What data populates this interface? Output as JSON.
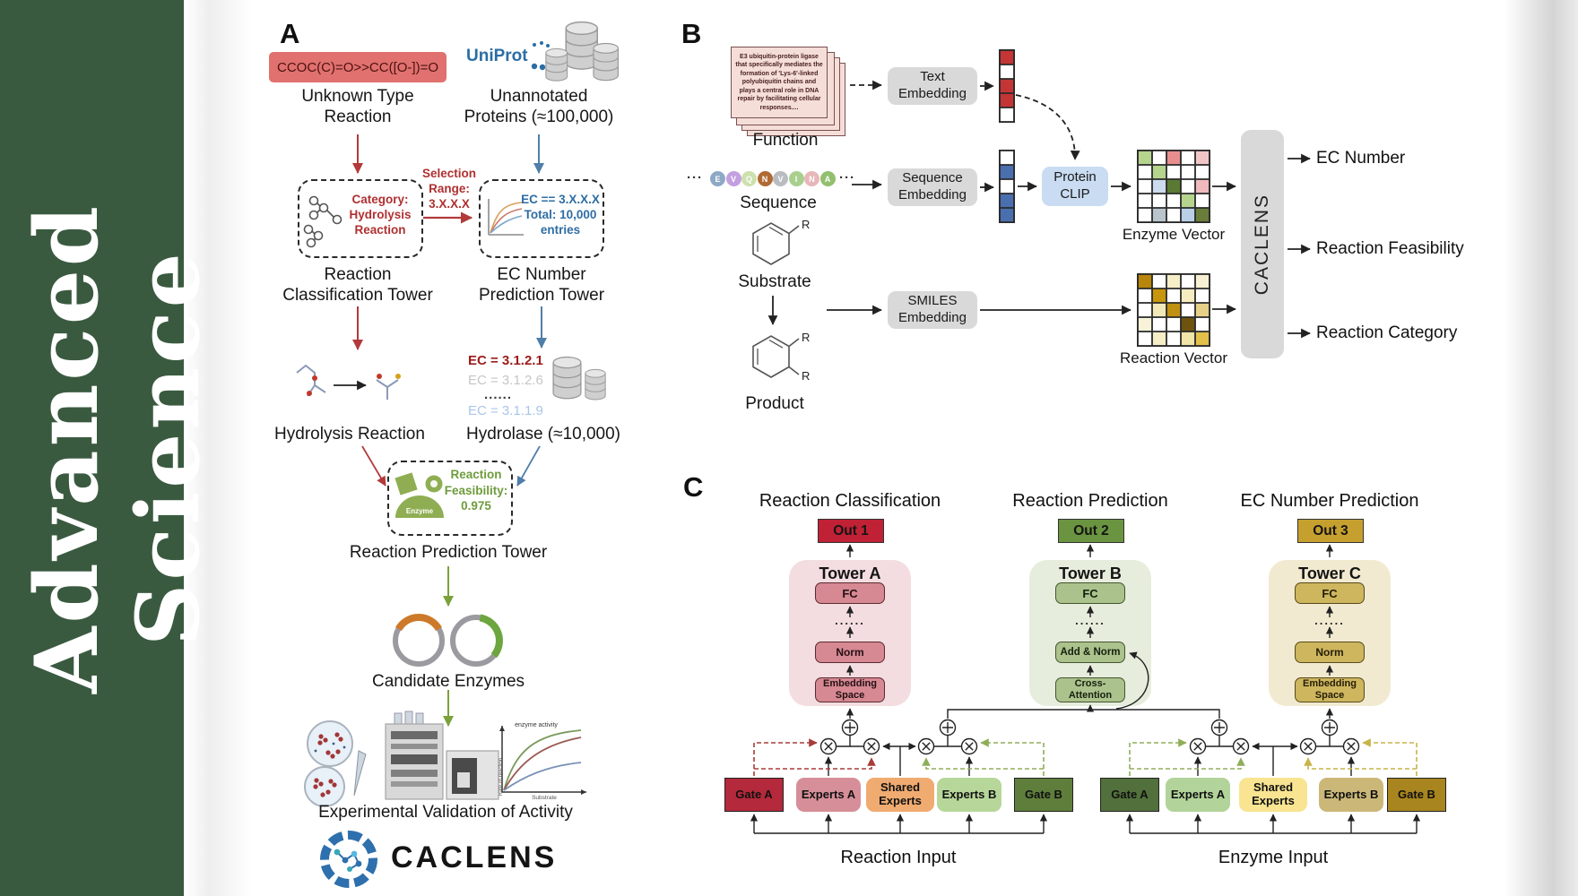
{
  "journal": {
    "title": "Advanced Science"
  },
  "palette": {
    "sidebar_green": "#3a5a40",
    "red_accent": "#b23a3a",
    "blue_accent": "#4f7fa8",
    "green_accent": "#7aa23c",
    "uniprot_blue": "#2b6da4",
    "smiles_chip": "#e0716e",
    "tower_a_pink": "#f3dde0",
    "tower_b_green": "#e7eddd",
    "tower_c_tan": "#f2ead0",
    "out1_red": "#c02135",
    "out2_green": "#6a9440",
    "out3_gold": "#c6a02e"
  },
  "panelA": {
    "label": "A",
    "smiles_reaction": "CCOC(C)=O>>CC([O-])=O",
    "unknown_type_label": "Unknown Type\nReaction",
    "uniprot_label": "UniProt",
    "unannotated_label": "Unannotated\nProteins (≈100,000)",
    "selection_label": "Selection\nRange:\n3.X.X.X",
    "category_label": "Category:\nHydrolysis\nReaction",
    "ec_filter_label": "EC == 3.X.X.X\nTotal: 10,000\nentries",
    "classification_tower_label": "Reaction\nClassification Tower",
    "ec_tower_label": "EC Number\nPrediction Tower",
    "ec_list": [
      "EC = 3.1.2.1",
      "EC = 3.1.2.6",
      "......",
      "EC = 3.1.1.9"
    ],
    "hydrolysis_label": "Hydrolysis Reaction",
    "hydrolase_label": "Hydrolase (≈10,000)",
    "enzyme_icon_label": "Enzyme",
    "feasibility_label": "Reaction\nFeasibility:\n0.975",
    "prediction_tower_label": "Reaction Prediction Tower",
    "candidate_label": "Candidate Enzymes",
    "validation_label": "Experimental Validation of Activity",
    "activity_plot": {
      "annotation": "enzyme activity",
      "ylabel": "Rate of reaction",
      "xlabel": "Substrate"
    },
    "brand": "CACLENS"
  },
  "panelB": {
    "label": "B",
    "function_card_text": "E3 ubiquitin-protein ligase that specifically mediates the formation of 'Lys-6'-linked polyubiquitin chains and plays a central role in DNA repair by facilitating cellular responses....",
    "function_label": "Function",
    "ellipsis": "···",
    "sequence_residues": [
      {
        "letter": "E",
        "color": "#8ea9c6"
      },
      {
        "letter": "V",
        "color": "#c39fe0"
      },
      {
        "letter": "Q",
        "color": "#cde0ad"
      },
      {
        "letter": "N",
        "color": "#b06a33"
      },
      {
        "letter": "V",
        "color": "#b9bdc1"
      },
      {
        "letter": "I",
        "color": "#a9cf8e"
      },
      {
        "letter": "N",
        "color": "#e7b7ba"
      },
      {
        "letter": "A",
        "color": "#93c06f"
      }
    ],
    "sequence_label": "Sequence",
    "substrate_label": "Substrate",
    "product_label": "Product",
    "r_group": "R",
    "text_embedding_label": "Text\nEmbedding",
    "sequence_embedding_label": "Sequence\nEmbedding",
    "smiles_embedding_label": "SMILES\nEmbedding",
    "protein_clip_label": "Protein\nCLIP",
    "enzyme_vector_label": "Enzyme Vector",
    "reaction_vector_label": "Reaction Vector",
    "caclens_label": "CACLENS",
    "outputs": [
      "EC Number",
      "Reaction Feasibility",
      "Reaction Category"
    ],
    "vectors": {
      "text_vector": [
        "#c43535",
        "#ffffff",
        "#c43535",
        "#c43535",
        "#ffffff"
      ],
      "sequence_vector": [
        "#ffffff",
        "#4a6fae",
        "#ffffff",
        "#4a6fae",
        "#4a6fae"
      ],
      "enzyme_matrix": [
        [
          "#b5d48e",
          "#ffffff",
          "#e88e8e",
          "#ffffff",
          "#f2c6c6"
        ],
        [
          "#ffffff",
          "#b5d48e",
          "#ffffff",
          "#ffffff",
          "#ffffff"
        ],
        [
          "#ffffff",
          "#ccdcee",
          "#5a7a33",
          "#ffffff",
          "#f0b9bd"
        ],
        [
          "#ffffff",
          "#ffffff",
          "#ffffff",
          "#b5d48e",
          "#ffffff"
        ],
        [
          "#ffffff",
          "#b9c4cc",
          "#ffffff",
          "#b9cfe8",
          "#6b7d3a"
        ]
      ],
      "reaction_matrix": [
        [
          "#b8860b",
          "#ffffff",
          "#f5eec6",
          "#ffffff",
          "#f7f0d2"
        ],
        [
          "#ffffff",
          "#c8960c",
          "#ffffff",
          "#f5ecc0",
          "#ffffff"
        ],
        [
          "#ffffff",
          "#f3e9b8",
          "#c09010",
          "#ffffff",
          "#e6d089"
        ],
        [
          "#f8f3d8",
          "#ffffff",
          "#ffffff",
          "#6e5210",
          "#ffffff"
        ],
        [
          "#ffffff",
          "#f5eec6",
          "#ffffff",
          "#f0e4a8",
          "#e2c04a"
        ]
      ]
    }
  },
  "panelC": {
    "label": "C",
    "headers": [
      "Reaction Classification",
      "Reaction Prediction",
      "EC Number Prediction"
    ],
    "outs": [
      "Out 1",
      "Out 2",
      "Out 3"
    ],
    "tower_a": {
      "title": "Tower A",
      "fc": "FC",
      "dots": "......",
      "norm": "Norm",
      "embedding": "Embedding\nSpace"
    },
    "tower_b": {
      "title": "Tower B",
      "fc": "FC",
      "dots": "......",
      "add_norm": "Add & Norm",
      "cross_attention": "Cross-\nAttention"
    },
    "tower_c": {
      "title": "Tower C",
      "fc": "FC",
      "dots": "......",
      "norm": "Norm",
      "embedding": "Embedding\nSpace"
    },
    "reaction_moe": {
      "gate_a": "Gate A",
      "experts_a": "Experts A",
      "shared": "Shared\nExperts",
      "experts_b": "Experts B",
      "gate_b": "Gate B",
      "input_label": "Reaction Input"
    },
    "enzyme_moe": {
      "gate_a": "Gate A",
      "experts_a": "Experts A",
      "shared": "Shared\nExperts",
      "experts_b": "Experts B",
      "gate_b": "Gate B",
      "input_label": "Enzyme Input"
    }
  }
}
